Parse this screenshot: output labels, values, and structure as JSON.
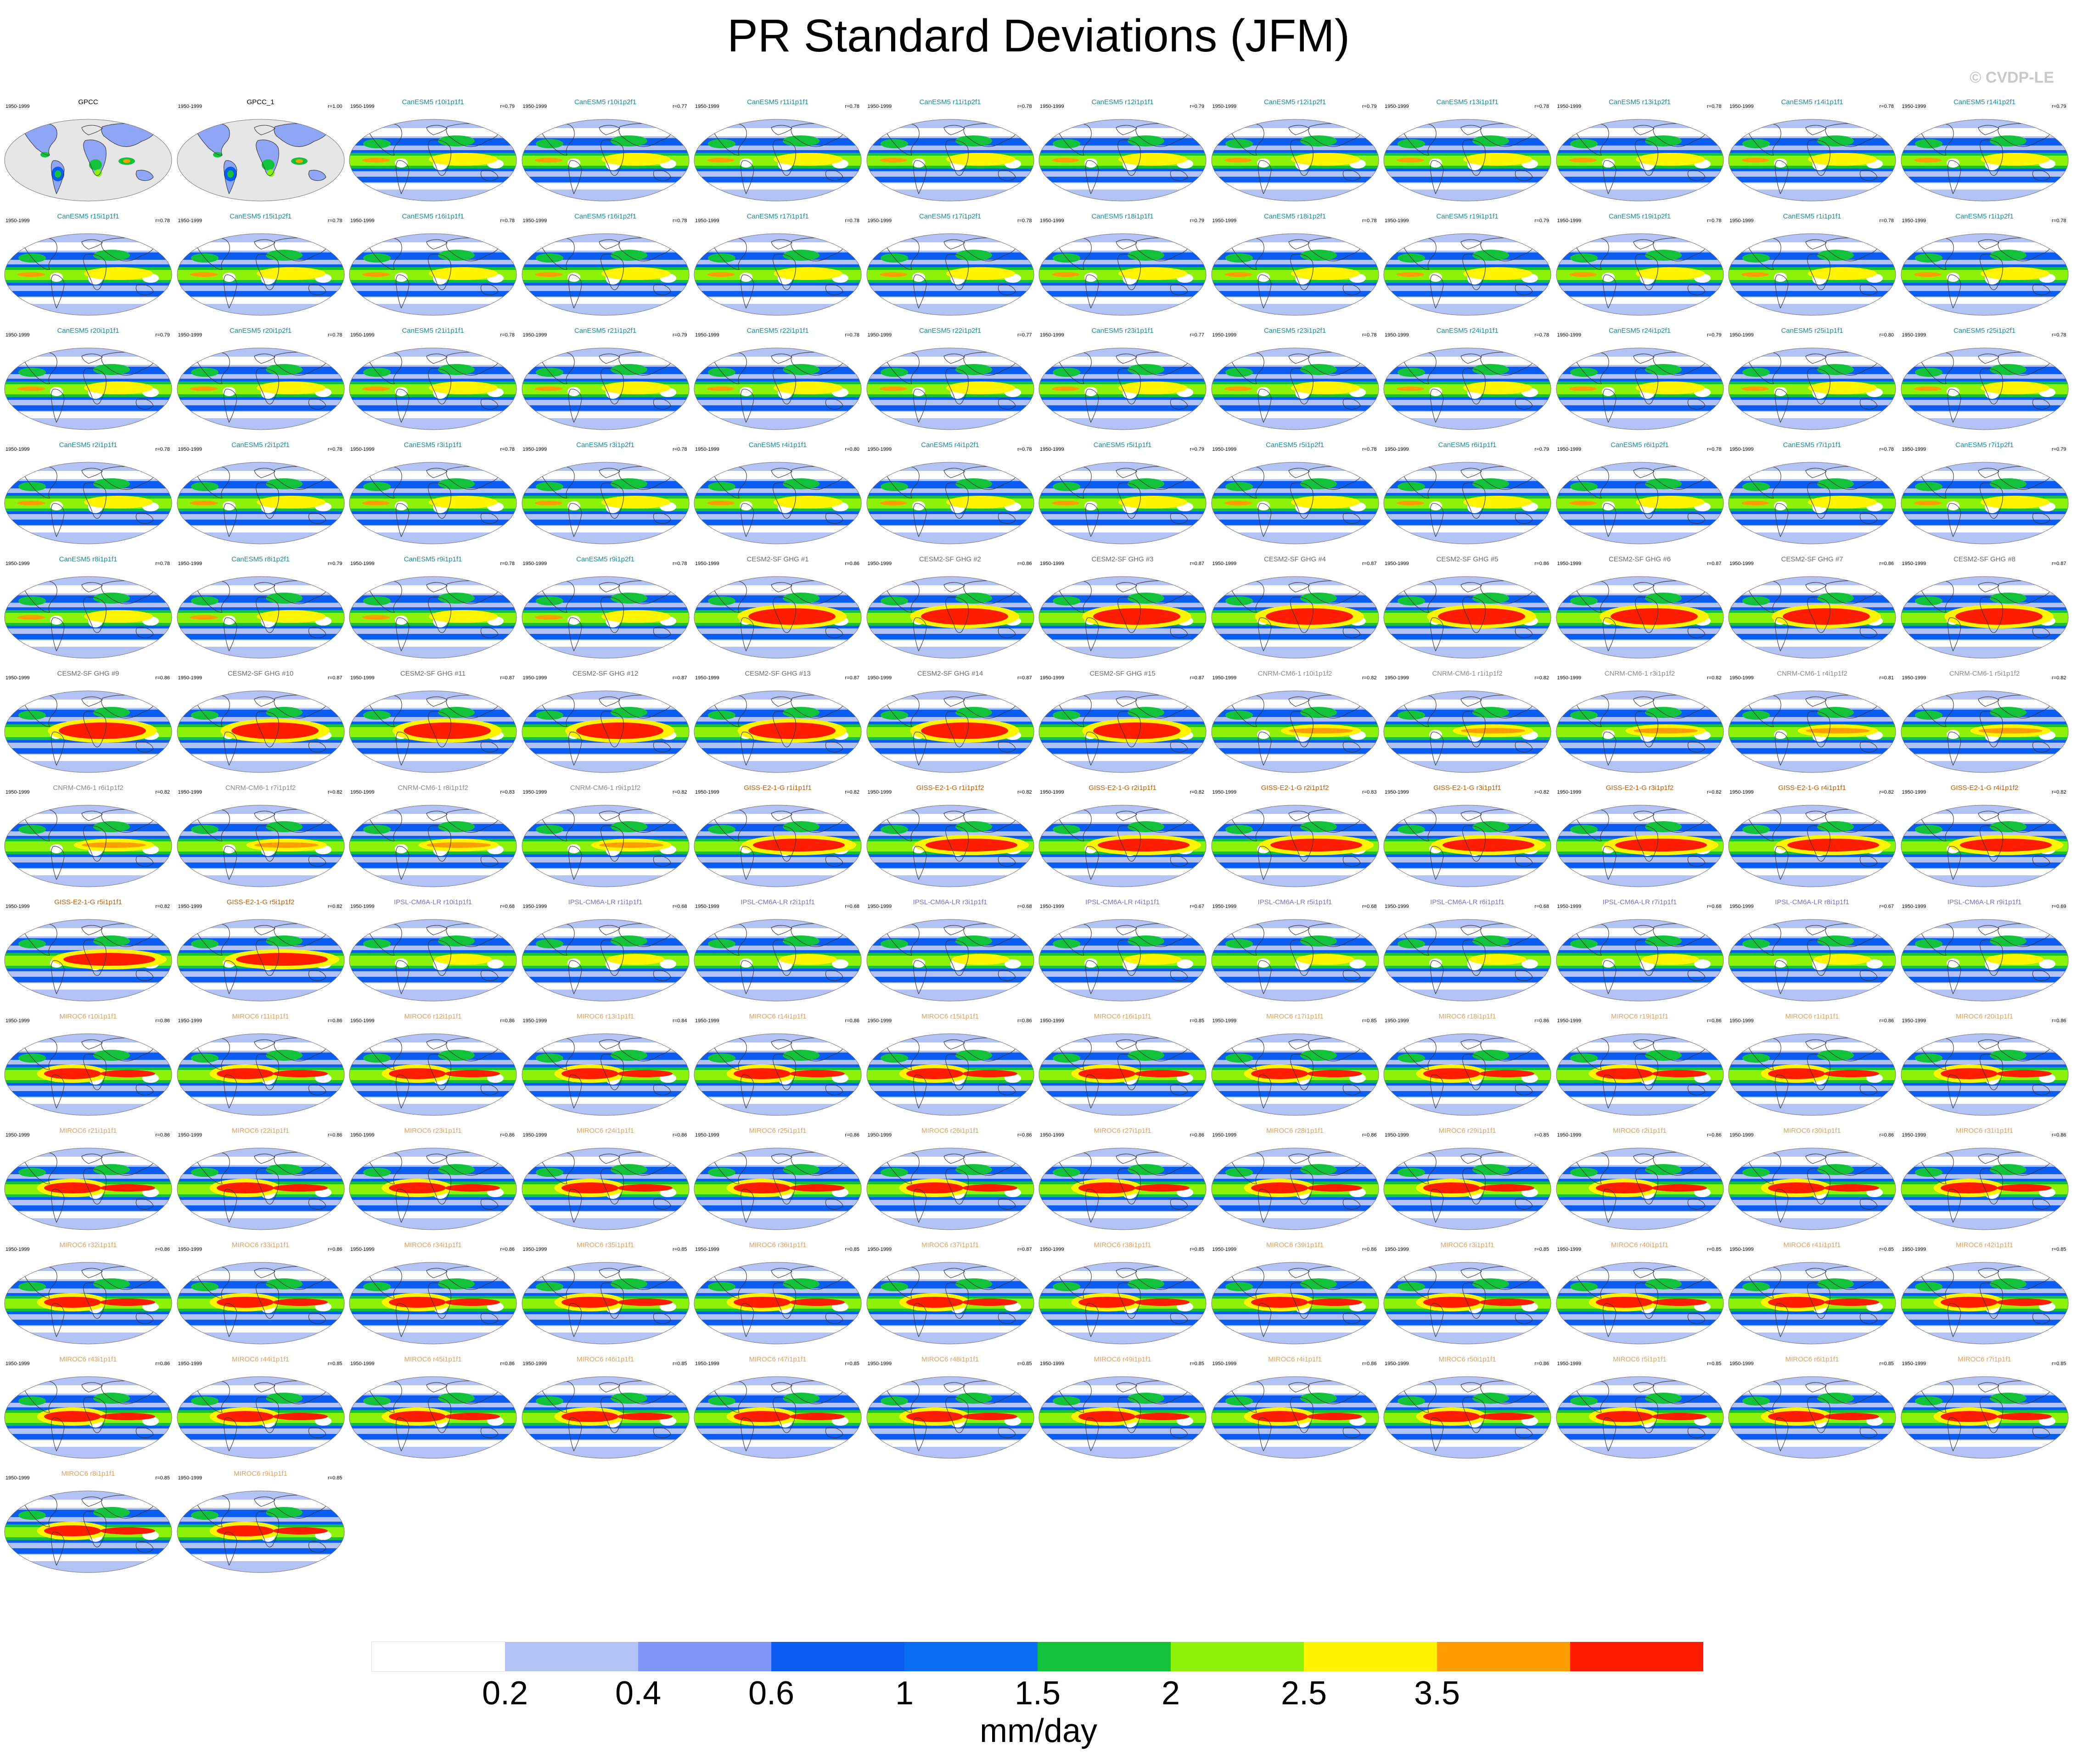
{
  "title": "PR Standard Deviations (JFM)",
  "credit": "© CVDP-LE",
  "units": "mm/day",
  "colorbar": {
    "labels": [
      "0.2",
      "0.4",
      "0.6",
      "1",
      "1.5",
      "2",
      "2.5",
      "3.5"
    ],
    "colors": [
      "#ffffff",
      "#b3c2f4",
      "#8295f8",
      "#0b5cf0",
      "#0a6ef5",
      "#12c23a",
      "#8cf20a",
      "#fff400",
      "#ff9e00",
      "#ff1c00"
    ]
  },
  "period": "1950-1999",
  "panels": [
    {
      "title": "GPCC",
      "corr": "",
      "color": "#000000",
      "type": "obs"
    },
    {
      "title": "GPCC_1",
      "corr": "r=1.00",
      "color": "#000000",
      "type": "obs"
    },
    {
      "title": "CanESM5 r10i1p1f1",
      "corr": "r=0.79",
      "color": "#1a8aa0",
      "type": "canesm"
    },
    {
      "title": "CanESM5 r10i1p2f1",
      "corr": "r=0.77",
      "color": "#1a8aa0",
      "type": "canesm"
    },
    {
      "title": "CanESM5 r11i1p1f1",
      "corr": "r=0.78",
      "color": "#1a8aa0",
      "type": "canesm"
    },
    {
      "title": "CanESM5 r11i1p2f1",
      "corr": "r=0.78",
      "color": "#1a8aa0",
      "type": "canesm"
    },
    {
      "title": "CanESM5 r12i1p1f1",
      "corr": "r=0.79",
      "color": "#1a8aa0",
      "type": "canesm"
    },
    {
      "title": "CanESM5 r12i1p2f1",
      "corr": "r=0.79",
      "color": "#1a8aa0",
      "type": "canesm"
    },
    {
      "title": "CanESM5 r13i1p1f1",
      "corr": "r=0.78",
      "color": "#1a8aa0",
      "type": "canesm"
    },
    {
      "title": "CanESM5 r13i1p2f1",
      "corr": "r=0.78",
      "color": "#1a8aa0",
      "type": "canesm"
    },
    {
      "title": "CanESM5 r14i1p1f1",
      "corr": "r=0.78",
      "color": "#1a8aa0",
      "type": "canesm"
    },
    {
      "title": "CanESM5 r14i1p2f1",
      "corr": "r=0.79",
      "color": "#1a8aa0",
      "type": "canesm"
    },
    {
      "title": "CanESM5 r15i1p1f1",
      "corr": "r=0.78",
      "color": "#1a8aa0",
      "type": "canesm"
    },
    {
      "title": "CanESM5 r15i1p2f1",
      "corr": "r=0.78",
      "color": "#1a8aa0",
      "type": "canesm"
    },
    {
      "title": "CanESM5 r16i1p1f1",
      "corr": "r=0.78",
      "color": "#1a8aa0",
      "type": "canesm"
    },
    {
      "title": "CanESM5 r16i1p2f1",
      "corr": "r=0.78",
      "color": "#1a8aa0",
      "type": "canesm"
    },
    {
      "title": "CanESM5 r17i1p1f1",
      "corr": "r=0.78",
      "color": "#1a8aa0",
      "type": "canesm"
    },
    {
      "title": "CanESM5 r17i1p2f1",
      "corr": "r=0.78",
      "color": "#1a8aa0",
      "type": "canesm"
    },
    {
      "title": "CanESM5 r18i1p1f1",
      "corr": "r=0.79",
      "color": "#1a8aa0",
      "type": "canesm"
    },
    {
      "title": "CanESM5 r18i1p2f1",
      "corr": "r=0.78",
      "color": "#1a8aa0",
      "type": "canesm"
    },
    {
      "title": "CanESM5 r19i1p1f1",
      "corr": "r=0.79",
      "color": "#1a8aa0",
      "type": "canesm"
    },
    {
      "title": "CanESM5 r19i1p2f1",
      "corr": "r=0.78",
      "color": "#1a8aa0",
      "type": "canesm"
    },
    {
      "title": "CanESM5 r1i1p1f1",
      "corr": "r=0.78",
      "color": "#1a8aa0",
      "type": "canesm"
    },
    {
      "title": "CanESM5 r1i1p2f1",
      "corr": "r=0.78",
      "color": "#1a8aa0",
      "type": "canesm"
    },
    {
      "title": "CanESM5 r20i1p1f1",
      "corr": "r=0.79",
      "color": "#1a8aa0",
      "type": "canesm"
    },
    {
      "title": "CanESM5 r20i1p2f1",
      "corr": "r=0.78",
      "color": "#1a8aa0",
      "type": "canesm"
    },
    {
      "title": "CanESM5 r21i1p1f1",
      "corr": "r=0.78",
      "color": "#1a8aa0",
      "type": "canesm"
    },
    {
      "title": "CanESM5 r21i1p2f1",
      "corr": "r=0.79",
      "color": "#1a8aa0",
      "type": "canesm"
    },
    {
      "title": "CanESM5 r22i1p1f1",
      "corr": "r=0.78",
      "color": "#1a8aa0",
      "type": "canesm"
    },
    {
      "title": "CanESM5 r22i1p2f1",
      "corr": "r=0.77",
      "color": "#1a8aa0",
      "type": "canesm"
    },
    {
      "title": "CanESM5 r23i1p1f1",
      "corr": "r=0.77",
      "color": "#1a8aa0",
      "type": "canesm"
    },
    {
      "title": "CanESM5 r23i1p2f1",
      "corr": "r=0.78",
      "color": "#1a8aa0",
      "type": "canesm"
    },
    {
      "title": "CanESM5 r24i1p1f1",
      "corr": "r=0.78",
      "color": "#1a8aa0",
      "type": "canesm"
    },
    {
      "title": "CanESM5 r24i1p2f1",
      "corr": "r=0.79",
      "color": "#1a8aa0",
      "type": "canesm"
    },
    {
      "title": "CanESM5 r25i1p1f1",
      "corr": "r=0.80",
      "color": "#1a8aa0",
      "type": "canesm"
    },
    {
      "title": "CanESM5 r25i1p2f1",
      "corr": "r=0.78",
      "color": "#1a8aa0",
      "type": "canesm"
    },
    {
      "title": "CanESM5 r2i1p1f1",
      "corr": "r=0.78",
      "color": "#1a8aa0",
      "type": "canesm"
    },
    {
      "title": "CanESM5 r2i1p2f1",
      "corr": "r=0.78",
      "color": "#1a8aa0",
      "type": "canesm"
    },
    {
      "title": "CanESM5 r3i1p1f1",
      "corr": "r=0.78",
      "color": "#1a8aa0",
      "type": "canesm"
    },
    {
      "title": "CanESM5 r3i1p2f1",
      "corr": "r=0.78",
      "color": "#1a8aa0",
      "type": "canesm"
    },
    {
      "title": "CanESM5 r4i1p1f1",
      "corr": "r=0.80",
      "color": "#1a8aa0",
      "type": "canesm"
    },
    {
      "title": "CanESM5 r4i1p2f1",
      "corr": "r=0.78",
      "color": "#1a8aa0",
      "type": "canesm"
    },
    {
      "title": "CanESM5 r5i1p1f1",
      "corr": "r=0.79",
      "color": "#1a8aa0",
      "type": "canesm"
    },
    {
      "title": "CanESM5 r5i1p2f1",
      "corr": "r=0.78",
      "color": "#1a8aa0",
      "type": "canesm"
    },
    {
      "title": "CanESM5 r6i1p1f1",
      "corr": "r=0.79",
      "color": "#1a8aa0",
      "type": "canesm"
    },
    {
      "title": "CanESM5 r6i1p2f1",
      "corr": "r=0.78",
      "color": "#1a8aa0",
      "type": "canesm"
    },
    {
      "title": "CanESM5 r7i1p1f1",
      "corr": "r=0.78",
      "color": "#1a8aa0",
      "type": "canesm"
    },
    {
      "title": "CanESM5 r7i1p2f1",
      "corr": "r=0.79",
      "color": "#1a8aa0",
      "type": "canesm"
    },
    {
      "title": "CanESM5 r8i1p1f1",
      "corr": "r=0.78",
      "color": "#1a8aa0",
      "type": "canesm"
    },
    {
      "title": "CanESM5 r8i1p2f1",
      "corr": "r=0.79",
      "color": "#1a8aa0",
      "type": "canesm"
    },
    {
      "title": "CanESM5 r9i1p1f1",
      "corr": "r=0.78",
      "color": "#1a8aa0",
      "type": "canesm"
    },
    {
      "title": "CanESM5 r9i1p2f1",
      "corr": "r=0.78",
      "color": "#1a8aa0",
      "type": "canesm"
    },
    {
      "title": "CESM2-SF GHG #1",
      "corr": "r=0.86",
      "color": "#6a6a6a",
      "type": "cesm"
    },
    {
      "title": "CESM2-SF GHG #2",
      "corr": "r=0.86",
      "color": "#6a6a6a",
      "type": "cesm"
    },
    {
      "title": "CESM2-SF GHG #3",
      "corr": "r=0.87",
      "color": "#6a6a6a",
      "type": "cesm"
    },
    {
      "title": "CESM2-SF GHG #4",
      "corr": "r=0.87",
      "color": "#6a6a6a",
      "type": "cesm"
    },
    {
      "title": "CESM2-SF GHG #5",
      "corr": "r=0.86",
      "color": "#6a6a6a",
      "type": "cesm"
    },
    {
      "title": "CESM2-SF GHG #6",
      "corr": "r=0.87",
      "color": "#6a6a6a",
      "type": "cesm"
    },
    {
      "title": "CESM2-SF GHG #7",
      "corr": "r=0.86",
      "color": "#6a6a6a",
      "type": "cesm"
    },
    {
      "title": "CESM2-SF GHG #8",
      "corr": "r=0.87",
      "color": "#6a6a6a",
      "type": "cesm"
    },
    {
      "title": "CESM2-SF GHG #9",
      "corr": "r=0.86",
      "color": "#6a6a6a",
      "type": "cesm"
    },
    {
      "title": "CESM2-SF GHG #10",
      "corr": "r=0.87",
      "color": "#6a6a6a",
      "type": "cesm"
    },
    {
      "title": "CESM2-SF GHG #11",
      "corr": "r=0.87",
      "color": "#6a6a6a",
      "type": "cesm"
    },
    {
      "title": "CESM2-SF GHG #12",
      "corr": "r=0.87",
      "color": "#6a6a6a",
      "type": "cesm"
    },
    {
      "title": "CESM2-SF GHG #13",
      "corr": "r=0.87",
      "color": "#6a6a6a",
      "type": "cesm"
    },
    {
      "title": "CESM2-SF GHG #14",
      "corr": "r=0.87",
      "color": "#6a6a6a",
      "type": "cesm"
    },
    {
      "title": "CESM2-SF GHG #15",
      "corr": "r=0.87",
      "color": "#6a6a6a",
      "type": "cesm"
    },
    {
      "title": "CNRM-CM6-1 r10i1p1f2",
      "corr": "r=0.82",
      "color": "#8a8a8a",
      "type": "cnrm"
    },
    {
      "title": "CNRM-CM6-1 r1i1p1f2",
      "corr": "r=0.82",
      "color": "#8a8a8a",
      "type": "cnrm"
    },
    {
      "title": "CNRM-CM6-1 r3i1p1f2",
      "corr": "r=0.82",
      "color": "#8a8a8a",
      "type": "cnrm"
    },
    {
      "title": "CNRM-CM6-1 r4i1p1f2",
      "corr": "r=0.81",
      "color": "#8a8a8a",
      "type": "cnrm"
    },
    {
      "title": "CNRM-CM6-1 r5i1p1f2",
      "corr": "r=0.82",
      "color": "#8a8a8a",
      "type": "cnrm"
    },
    {
      "title": "CNRM-CM6-1 r6i1p1f2",
      "corr": "r=0.82",
      "color": "#8a8a8a",
      "type": "cnrm"
    },
    {
      "title": "CNRM-CM6-1 r7i1p1f2",
      "corr": "r=0.82",
      "color": "#8a8a8a",
      "type": "cnrm"
    },
    {
      "title": "CNRM-CM6-1 r8i1p1f2",
      "corr": "r=0.83",
      "color": "#8a8a8a",
      "type": "cnrm"
    },
    {
      "title": "CNRM-CM6-1 r9i1p1f2",
      "corr": "r=0.82",
      "color": "#8a8a8a",
      "type": "cnrm"
    },
    {
      "title": "GISS-E2-1-G r1i1p1f1",
      "corr": "r=0.82",
      "color": "#c05a00",
      "type": "giss"
    },
    {
      "title": "GISS-E2-1-G r1i1p1f2",
      "corr": "r=0.82",
      "color": "#c05a00",
      "type": "giss"
    },
    {
      "title": "GISS-E2-1-G r2i1p1f1",
      "corr": "r=0.82",
      "color": "#c05a00",
      "type": "giss"
    },
    {
      "title": "GISS-E2-1-G r2i1p1f2",
      "corr": "r=0.83",
      "color": "#c05a00",
      "type": "giss"
    },
    {
      "title": "GISS-E2-1-G r3i1p1f1",
      "corr": "r=0.82",
      "color": "#c05a00",
      "type": "giss"
    },
    {
      "title": "GISS-E2-1-G r3i1p1f2",
      "corr": "r=0.82",
      "color": "#c05a00",
      "type": "giss"
    },
    {
      "title": "GISS-E2-1-G r4i1p1f1",
      "corr": "r=0.82",
      "color": "#c05a00",
      "type": "giss"
    },
    {
      "title": "GISS-E2-1-G r4i1p1f2",
      "corr": "r=0.82",
      "color": "#c05a00",
      "type": "giss"
    },
    {
      "title": "GISS-E2-1-G r5i1p1f1",
      "corr": "r=0.82",
      "color": "#c05a00",
      "type": "giss"
    },
    {
      "title": "GISS-E2-1-G r5i1p1f2",
      "corr": "r=0.82",
      "color": "#c05a00",
      "type": "giss"
    },
    {
      "title": "IPSL-CM6A-LR r10i1p1f1",
      "corr": "r=0.68",
      "color": "#7a70c8",
      "type": "ipsl"
    },
    {
      "title": "IPSL-CM6A-LR r1i1p1f1",
      "corr": "r=0.68",
      "color": "#7a70c8",
      "type": "ipsl"
    },
    {
      "title": "IPSL-CM6A-LR r2i1p1f1",
      "corr": "r=0.68",
      "color": "#7a70c8",
      "type": "ipsl"
    },
    {
      "title": "IPSL-CM6A-LR r3i1p1f1",
      "corr": "r=0.68",
      "color": "#7a70c8",
      "type": "ipsl"
    },
    {
      "title": "IPSL-CM6A-LR r4i1p1f1",
      "corr": "r=0.67",
      "color": "#7a70c8",
      "type": "ipsl"
    },
    {
      "title": "IPSL-CM6A-LR r5i1p1f1",
      "corr": "r=0.68",
      "color": "#7a70c8",
      "type": "ipsl"
    },
    {
      "title": "IPSL-CM6A-LR r6i1p1f1",
      "corr": "r=0.68",
      "color": "#7a70c8",
      "type": "ipsl"
    },
    {
      "title": "IPSL-CM6A-LR r7i1p1f1",
      "corr": "r=0.68",
      "color": "#7a70c8",
      "type": "ipsl"
    },
    {
      "title": "IPSL-CM6A-LR r8i1p1f1",
      "corr": "r=0.67",
      "color": "#7a70c8",
      "type": "ipsl"
    },
    {
      "title": "IPSL-CM6A-LR r9i1p1f1",
      "corr": "r=0.69",
      "color": "#7a70c8",
      "type": "ipsl"
    },
    {
      "title": "MIROC6 r10i1p1f1",
      "corr": "r=0.86",
      "color": "#e0a060",
      "type": "miroc"
    },
    {
      "title": "MIROC6 r11i1p1f1",
      "corr": "r=0.86",
      "color": "#e0a060",
      "type": "miroc"
    },
    {
      "title": "MIROC6 r12i1p1f1",
      "corr": "r=0.86",
      "color": "#e0a060",
      "type": "miroc"
    },
    {
      "title": "MIROC6 r13i1p1f1",
      "corr": "r=0.84",
      "color": "#e0a060",
      "type": "miroc"
    },
    {
      "title": "MIROC6 r14i1p1f1",
      "corr": "r=0.86",
      "color": "#e0a060",
      "type": "miroc"
    },
    {
      "title": "MIROC6 r15i1p1f1",
      "corr": "r=0.86",
      "color": "#e0a060",
      "type": "miroc"
    },
    {
      "title": "MIROC6 r16i1p1f1",
      "corr": "r=0.85",
      "color": "#e0a060",
      "type": "miroc"
    },
    {
      "title": "MIROC6 r17i1p1f1",
      "corr": "r=0.85",
      "color": "#e0a060",
      "type": "miroc"
    },
    {
      "title": "MIROC6 r18i1p1f1",
      "corr": "r=0.86",
      "color": "#e0a060",
      "type": "miroc"
    },
    {
      "title": "MIROC6 r19i1p1f1",
      "corr": "r=0.86",
      "color": "#e0a060",
      "type": "miroc"
    },
    {
      "title": "MIROC6 r1i1p1f1",
      "corr": "r=0.86",
      "color": "#e0a060",
      "type": "miroc"
    },
    {
      "title": "MIROC6 r20i1p1f1",
      "corr": "r=0.86",
      "color": "#e0a060",
      "type": "miroc"
    },
    {
      "title": "MIROC6 r21i1p1f1",
      "corr": "r=0.86",
      "color": "#e0a060",
      "type": "miroc"
    },
    {
      "title": "MIROC6 r22i1p1f1",
      "corr": "r=0.86",
      "color": "#e0a060",
      "type": "miroc"
    },
    {
      "title": "MIROC6 r23i1p1f1",
      "corr": "r=0.86",
      "color": "#e0a060",
      "type": "miroc"
    },
    {
      "title": "MIROC6 r24i1p1f1",
      "corr": "r=0.86",
      "color": "#e0a060",
      "type": "miroc"
    },
    {
      "title": "MIROC6 r25i1p1f1",
      "corr": "r=0.86",
      "color": "#e0a060",
      "type": "miroc"
    },
    {
      "title": "MIROC6 r26i1p1f1",
      "corr": "r=0.86",
      "color": "#e0a060",
      "type": "miroc"
    },
    {
      "title": "MIROC6 r27i1p1f1",
      "corr": "r=0.86",
      "color": "#e0a060",
      "type": "miroc"
    },
    {
      "title": "MIROC6 r28i1p1f1",
      "corr": "r=0.86",
      "color": "#e0a060",
      "type": "miroc"
    },
    {
      "title": "MIROC6 r29i1p1f1",
      "corr": "r=0.85",
      "color": "#e0a060",
      "type": "miroc"
    },
    {
      "title": "MIROC6 r2i1p1f1",
      "corr": "r=0.86",
      "color": "#e0a060",
      "type": "miroc"
    },
    {
      "title": "MIROC6 r30i1p1f1",
      "corr": "r=0.86",
      "color": "#e0a060",
      "type": "miroc"
    },
    {
      "title": "MIROC6 r31i1p1f1",
      "corr": "r=0.86",
      "color": "#e0a060",
      "type": "miroc"
    },
    {
      "title": "MIROC6 r32i1p1f1",
      "corr": "r=0.86",
      "color": "#e0a060",
      "type": "miroc"
    },
    {
      "title": "MIROC6 r33i1p1f1",
      "corr": "r=0.86",
      "color": "#e0a060",
      "type": "miroc"
    },
    {
      "title": "MIROC6 r34i1p1f1",
      "corr": "r=0.86",
      "color": "#e0a060",
      "type": "miroc"
    },
    {
      "title": "MIROC6 r35i1p1f1",
      "corr": "r=0.85",
      "color": "#e0a060",
      "type": "miroc"
    },
    {
      "title": "MIROC6 r36i1p1f1",
      "corr": "r=0.85",
      "color": "#e0a060",
      "type": "miroc"
    },
    {
      "title": "MIROC6 r37i1p1f1",
      "corr": "r=0.87",
      "color": "#e0a060",
      "type": "miroc"
    },
    {
      "title": "MIROC6 r38i1p1f1",
      "corr": "r=0.85",
      "color": "#e0a060",
      "type": "miroc"
    },
    {
      "title": "MIROC6 r39i1p1f1",
      "corr": "r=0.86",
      "color": "#e0a060",
      "type": "miroc"
    },
    {
      "title": "MIROC6 r3i1p1f1",
      "corr": "r=0.85",
      "color": "#e0a060",
      "type": "miroc"
    },
    {
      "title": "MIROC6 r40i1p1f1",
      "corr": "r=0.85",
      "color": "#e0a060",
      "type": "miroc"
    },
    {
      "title": "MIROC6 r41i1p1f1",
      "corr": "r=0.85",
      "color": "#e0a060",
      "type": "miroc"
    },
    {
      "title": "MIROC6 r42i1p1f1",
      "corr": "r=0.85",
      "color": "#e0a060",
      "type": "miroc"
    },
    {
      "title": "MIROC6 r43i1p1f1",
      "corr": "r=0.86",
      "color": "#e0a060",
      "type": "miroc"
    },
    {
      "title": "MIROC6 r44i1p1f1",
      "corr": "r=0.85",
      "color": "#e0a060",
      "type": "miroc"
    },
    {
      "title": "MIROC6 r45i1p1f1",
      "corr": "r=0.86",
      "color": "#e0a060",
      "type": "miroc"
    },
    {
      "title": "MIROC6 r46i1p1f1",
      "corr": "r=0.85",
      "color": "#e0a060",
      "type": "miroc"
    },
    {
      "title": "MIROC6 r47i1p1f1",
      "corr": "r=0.85",
      "color": "#e0a060",
      "type": "miroc"
    },
    {
      "title": "MIROC6 r48i1p1f1",
      "corr": "r=0.85",
      "color": "#e0a060",
      "type": "miroc"
    },
    {
      "title": "MIROC6 r49i1p1f1",
      "corr": "r=0.85",
      "color": "#e0a060",
      "type": "miroc"
    },
    {
      "title": "MIROC6 r4i1p1f1",
      "corr": "r=0.86",
      "color": "#e0a060",
      "type": "miroc"
    },
    {
      "title": "MIROC6 r50i1p1f1",
      "corr": "r=0.86",
      "color": "#e0a060",
      "type": "miroc"
    },
    {
      "title": "MIROC6 r5i1p1f1",
      "corr": "r=0.85",
      "color": "#e0a060",
      "type": "miroc"
    },
    {
      "title": "MIROC6 r6i1p1f1",
      "corr": "r=0.85",
      "color": "#e0a060",
      "type": "miroc"
    },
    {
      "title": "MIROC6 r7i1p1f1",
      "corr": "r=0.85",
      "color": "#e0a060",
      "type": "miroc"
    },
    {
      "title": "MIROC6 r8i1p1f1",
      "corr": "r=0.85",
      "color": "#e0a060",
      "type": "miroc"
    },
    {
      "title": "MIROC6 r9i1p1f1",
      "corr": "r=0.85",
      "color": "#e0a060",
      "type": "miroc"
    }
  ]
}
